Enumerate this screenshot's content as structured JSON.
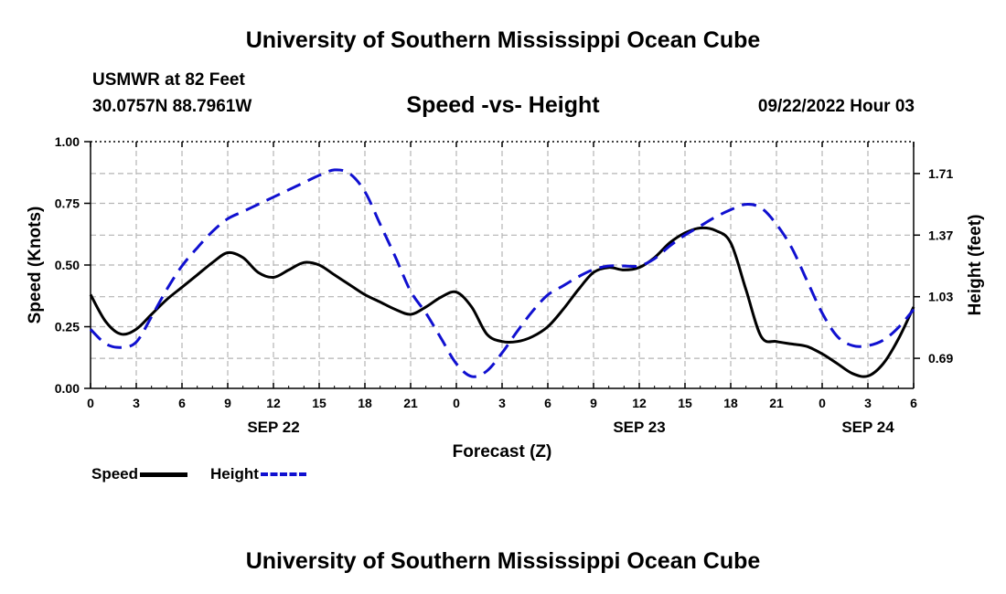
{
  "page": {
    "title": "University of Southern Mississippi Ocean Cube",
    "footer_title": "University of Southern Mississippi Ocean Cube",
    "station": "USMWR at 82 Feet",
    "coords": "30.0757N  88.7961W",
    "subtitle": "Speed -vs- Height",
    "date": "09/22/2022 Hour 03"
  },
  "legend": {
    "speed": "Speed",
    "height": "Height"
  },
  "colors": {
    "speed": "#000000",
    "height": "#1010d0",
    "grid": "#b4b4b4"
  },
  "chart_data": {
    "type": "line",
    "title": "Speed -vs- Height",
    "xlabel": "Forecast (Z)",
    "ylabel": "Speed (Knots)",
    "y2label": "Height (feet)",
    "x_unit": "hours since SEP 22 00Z",
    "xlim": [
      0,
      54
    ],
    "ylim": [
      0,
      1.0
    ],
    "y2lim": [
      0.524,
      1.886
    ],
    "x_ticks": [
      0,
      3,
      6,
      9,
      12,
      15,
      18,
      21,
      24,
      27,
      30,
      33,
      36,
      39,
      42,
      45,
      48,
      51,
      54
    ],
    "x_tick_labels": [
      "0",
      "3",
      "6",
      "9",
      "12",
      "15",
      "18",
      "21",
      "0",
      "3",
      "6",
      "9",
      "12",
      "15",
      "18",
      "21",
      "0",
      "3",
      "6"
    ],
    "date_labels": [
      {
        "x": 12,
        "label": "SEP 22"
      },
      {
        "x": 36,
        "label": "SEP 23"
      },
      {
        "x": 51,
        "label": "SEP 24"
      }
    ],
    "y_ticks": [
      0.0,
      0.25,
      0.5,
      0.75,
      1.0
    ],
    "y_tick_labels": [
      "0.00",
      "0.25",
      "0.50",
      "0.75",
      "1.00"
    ],
    "y2_ticks": [
      0.69,
      1.03,
      1.37,
      1.71
    ],
    "y2_tick_labels": [
      "0.69",
      "1.03",
      "1.37",
      "1.71"
    ],
    "grid": true,
    "series": [
      {
        "name": "Speed",
        "axis": "left",
        "style": "solid",
        "x": [
          0,
          1,
          2,
          3,
          4,
          5,
          6,
          7,
          8,
          9,
          10,
          11,
          12,
          13,
          14,
          15,
          16,
          17,
          18,
          19,
          20,
          21,
          22,
          23,
          24,
          25,
          26,
          27,
          28,
          29,
          30,
          31,
          32,
          33,
          34,
          35,
          36,
          37,
          38,
          39,
          40,
          41,
          42,
          43,
          44,
          45,
          46,
          47,
          48,
          49,
          50,
          51,
          52,
          53,
          54
        ],
        "values": [
          0.38,
          0.27,
          0.22,
          0.24,
          0.3,
          0.36,
          0.41,
          0.46,
          0.51,
          0.55,
          0.53,
          0.47,
          0.45,
          0.48,
          0.51,
          0.5,
          0.46,
          0.42,
          0.38,
          0.35,
          0.32,
          0.3,
          0.33,
          0.37,
          0.39,
          0.33,
          0.22,
          0.19,
          0.19,
          0.21,
          0.25,
          0.32,
          0.4,
          0.47,
          0.49,
          0.48,
          0.49,
          0.53,
          0.59,
          0.63,
          0.65,
          0.64,
          0.59,
          0.4,
          0.21,
          0.19,
          0.18,
          0.17,
          0.14,
          0.1,
          0.06,
          0.05,
          0.1,
          0.2,
          0.33
        ]
      },
      {
        "name": "Height",
        "axis": "right",
        "style": "dashed",
        "x": [
          0,
          1,
          2,
          3,
          4,
          5,
          6,
          7,
          8,
          9,
          10,
          11,
          12,
          13,
          14,
          15,
          16,
          17,
          18,
          19,
          20,
          21,
          22,
          23,
          24,
          25,
          26,
          27,
          28,
          29,
          30,
          31,
          32,
          33,
          34,
          35,
          36,
          37,
          38,
          39,
          40,
          41,
          42,
          43,
          44,
          45,
          46,
          47,
          48,
          49,
          50,
          51,
          52,
          53,
          54
        ],
        "values": [
          0.85,
          0.77,
          0.75,
          0.78,
          0.92,
          1.07,
          1.2,
          1.3,
          1.39,
          1.46,
          1.5,
          1.54,
          1.58,
          1.62,
          1.66,
          1.7,
          1.73,
          1.71,
          1.61,
          1.43,
          1.25,
          1.06,
          0.94,
          0.8,
          0.66,
          0.59,
          0.62,
          0.72,
          0.84,
          0.95,
          1.04,
          1.09,
          1.14,
          1.18,
          1.2,
          1.2,
          1.2,
          1.24,
          1.31,
          1.37,
          1.42,
          1.47,
          1.51,
          1.54,
          1.52,
          1.43,
          1.3,
          1.12,
          0.94,
          0.81,
          0.76,
          0.76,
          0.79,
          0.86,
          0.96
        ]
      }
    ]
  }
}
